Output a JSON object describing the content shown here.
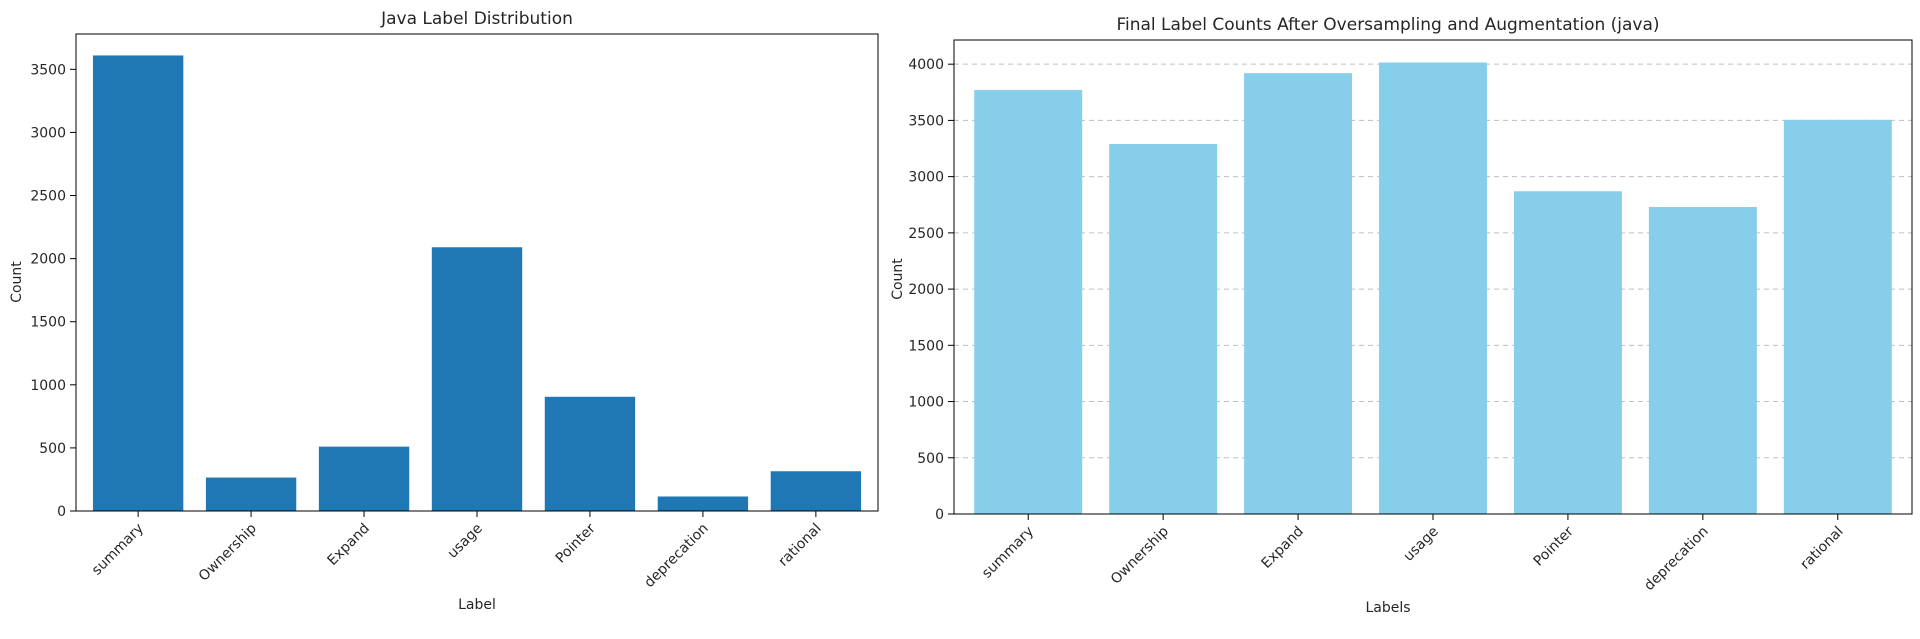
{
  "chart_data": [
    {
      "type": "bar",
      "title": "Java Label Distribution",
      "xlabel": "Label",
      "ylabel": "Count",
      "categories": [
        "summary",
        "Ownership",
        "Expand",
        "usage",
        "Pointer",
        "deprecation",
        "rational"
      ],
      "values": [
        3610,
        265,
        510,
        2090,
        905,
        115,
        315
      ],
      "ylim": [
        0,
        3780
      ],
      "yticks": [
        0,
        500,
        1000,
        1500,
        2000,
        2500,
        3000,
        3500
      ],
      "grid": false,
      "color": "#1f77b4"
    },
    {
      "type": "bar",
      "title": "Final Label Counts After Oversampling and Augmentation (java)",
      "xlabel": "Labels",
      "ylabel": "Count",
      "categories": [
        "summary",
        "Ownership",
        "Expand",
        "usage",
        "Pointer",
        "deprecation",
        "rational"
      ],
      "values": [
        3770,
        3290,
        3920,
        4015,
        2870,
        2730,
        3505
      ],
      "ylim": [
        0,
        4215
      ],
      "yticks": [
        0,
        500,
        1000,
        1500,
        2000,
        2500,
        3000,
        3500,
        4000
      ],
      "grid": true,
      "color": "#87ceeb"
    }
  ]
}
